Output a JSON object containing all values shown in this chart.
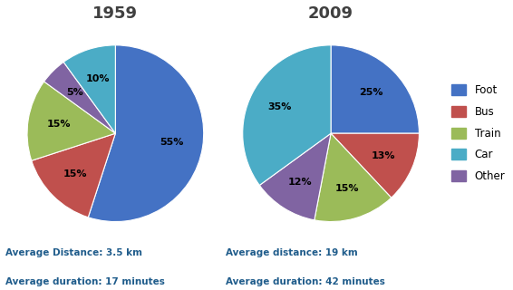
{
  "title_1959": "1959",
  "title_2009": "2009",
  "categories": [
    "Foot",
    "Bus",
    "Train",
    "Car",
    "Other"
  ],
  "colors": [
    "#4472C4",
    "#C0504D",
    "#9BBB59",
    "#4BACC6",
    "#8064A2"
  ],
  "values_1959": [
    55,
    15,
    15,
    10,
    5
  ],
  "values_2009": [
    25,
    13,
    15,
    35,
    12
  ],
  "labels_1959": [
    "55%",
    "15%",
    "15%",
    "10%",
    "5%"
  ],
  "labels_2009": [
    "25%",
    "13%",
    "15%",
    "35%",
    "12%"
  ],
  "text1_1959": "Average Distance: 3.5 km",
  "text2_1959": "Average duration: 17 minutes",
  "text1_2009": "Average distance: 19 km",
  "text2_2009": "Average duration: 42 minutes",
  "text_color": "#1F5C8B",
  "background_color": "#FFFFFF"
}
